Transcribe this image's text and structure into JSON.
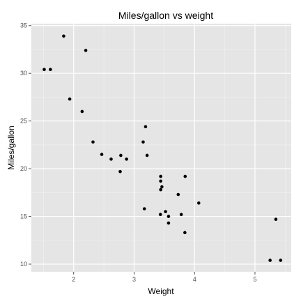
{
  "chart_data": {
    "type": "scatter",
    "title": "Miles/gallon vs weight",
    "xlabel": "Weight",
    "ylabel": "Miles/gallon",
    "xlim": [
      1.3,
      5.6
    ],
    "ylim": [
      9.2,
      35.2
    ],
    "xticks": [
      2,
      3,
      4,
      5
    ],
    "yticks": [
      10,
      15,
      20,
      25,
      30,
      35
    ],
    "grid": true,
    "legend": "none",
    "colors": {
      "panel": "#e5e5e5",
      "grid_major": "#ffffff",
      "grid_minor": "#f2f2f2",
      "point": "#000000",
      "tick": "#4d4d4d"
    },
    "points": [
      {
        "x": 2.62,
        "y": 21.0
      },
      {
        "x": 2.875,
        "y": 21.0
      },
      {
        "x": 2.32,
        "y": 22.8
      },
      {
        "x": 3.215,
        "y": 21.4
      },
      {
        "x": 3.44,
        "y": 18.7
      },
      {
        "x": 3.46,
        "y": 18.1
      },
      {
        "x": 3.57,
        "y": 14.3
      },
      {
        "x": 3.19,
        "y": 24.4
      },
      {
        "x": 3.15,
        "y": 22.8
      },
      {
        "x": 3.44,
        "y": 19.2
      },
      {
        "x": 3.44,
        "y": 17.8
      },
      {
        "x": 4.07,
        "y": 16.4
      },
      {
        "x": 3.73,
        "y": 17.3
      },
      {
        "x": 3.78,
        "y": 15.2
      },
      {
        "x": 5.25,
        "y": 10.4
      },
      {
        "x": 5.424,
        "y": 10.4
      },
      {
        "x": 5.345,
        "y": 14.7
      },
      {
        "x": 2.2,
        "y": 32.4
      },
      {
        "x": 1.615,
        "y": 30.4
      },
      {
        "x": 1.835,
        "y": 33.9
      },
      {
        "x": 2.465,
        "y": 21.5
      },
      {
        "x": 3.52,
        "y": 15.5
      },
      {
        "x": 3.435,
        "y": 15.2
      },
      {
        "x": 3.84,
        "y": 13.3
      },
      {
        "x": 3.845,
        "y": 19.2
      },
      {
        "x": 1.935,
        "y": 27.3
      },
      {
        "x": 2.14,
        "y": 26.0
      },
      {
        "x": 1.513,
        "y": 30.4
      },
      {
        "x": 3.17,
        "y": 15.8
      },
      {
        "x": 2.77,
        "y": 19.7
      },
      {
        "x": 3.57,
        "y": 15.0
      },
      {
        "x": 2.78,
        "y": 21.4
      }
    ]
  }
}
